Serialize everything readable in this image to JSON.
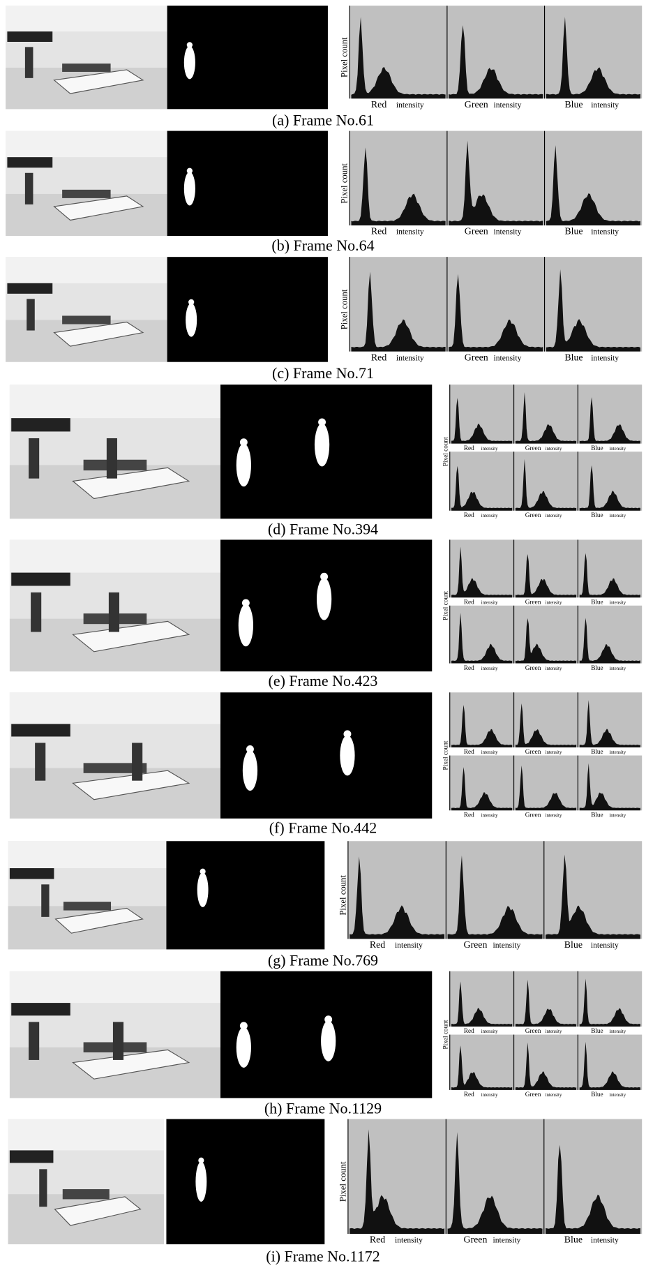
{
  "panels": [
    {
      "caption": "(a) Frame No.61",
      "y_label": "Pixel count",
      "channels": [
        "Red",
        "Green",
        "Blue"
      ],
      "x_suffix": "intensity"
    },
    {
      "caption": "(b) Frame No.64",
      "y_label": "Pixel count",
      "channels": [
        "Red",
        "Green",
        "Blue"
      ],
      "x_suffix": "intensity"
    },
    {
      "caption": "(c) Frame No.71",
      "y_label": "Pixel count",
      "channels": [
        "Red",
        "Green",
        "Blue"
      ],
      "x_suffix": "intensity"
    },
    {
      "caption": "(d) Frame No.394",
      "y_label": "Pixel count",
      "channels": [
        "Red",
        "Green",
        "Blue"
      ],
      "x_suffix": "intensity"
    },
    {
      "caption": "(e) Frame No.423",
      "y_label": "Pixel count",
      "channels": [
        "Red",
        "Green",
        "Blue"
      ],
      "x_suffix": "intensity"
    },
    {
      "caption": "(f) Frame No.442",
      "y_label": "Pixel count",
      "channels": [
        "Red",
        "Green",
        "Blue"
      ],
      "x_suffix": "intensity"
    },
    {
      "caption": "(g) Frame No.769",
      "y_label": "Pixel count",
      "channels": [
        "Red",
        "Green",
        "Blue"
      ],
      "x_suffix": "intensity"
    },
    {
      "caption": "(h) Frame No.1129",
      "y_label": "Pixel count",
      "channels": [
        "Red",
        "Green",
        "Blue"
      ],
      "x_suffix": "intensity"
    },
    {
      "caption": "(i) Frame No.1172",
      "y_label": "Pixel count",
      "channels": [
        "Red",
        "Green",
        "Blue"
      ],
      "x_suffix": "intensity"
    }
  ]
}
